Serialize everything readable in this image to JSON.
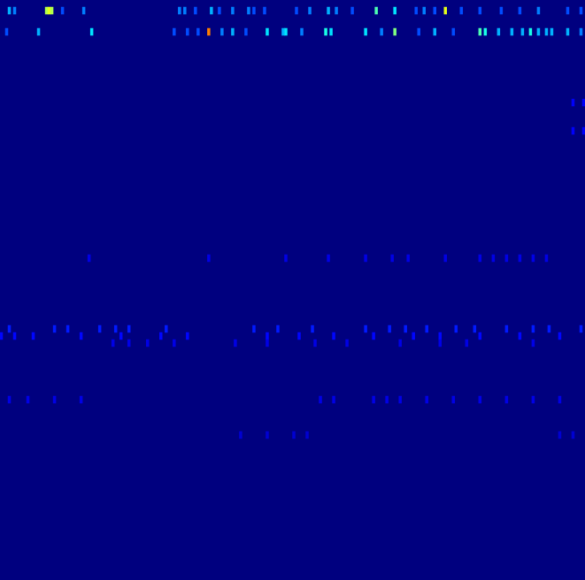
{
  "chart_data": {
    "type": "heatmap",
    "tick_labels": false,
    "grid": false,
    "xlim": [
      0,
      220
    ],
    "ylim": [
      0,
      82
    ],
    "color_range": [
      0,
      1
    ],
    "cells": [
      [
        3,
        1,
        0.3
      ],
      [
        5,
        1,
        0.25
      ],
      [
        17,
        1,
        0.55
      ],
      [
        18,
        1,
        0.6
      ],
      [
        19,
        1,
        0.55
      ],
      [
        23,
        1,
        0.2
      ],
      [
        31,
        1,
        0.25
      ],
      [
        67,
        1,
        0.25
      ],
      [
        69,
        1,
        0.25
      ],
      [
        73,
        1,
        0.2
      ],
      [
        79,
        1,
        0.3
      ],
      [
        82,
        1,
        0.2
      ],
      [
        87,
        1,
        0.25
      ],
      [
        93,
        1,
        0.25
      ],
      [
        95,
        1,
        0.2
      ],
      [
        99,
        1,
        0.2
      ],
      [
        111,
        1,
        0.2
      ],
      [
        116,
        1,
        0.25
      ],
      [
        123,
        1,
        0.3
      ],
      [
        126,
        1,
        0.25
      ],
      [
        132,
        1,
        0.2
      ],
      [
        141,
        1,
        0.45
      ],
      [
        148,
        1,
        0.35
      ],
      [
        156,
        1,
        0.2
      ],
      [
        159,
        1,
        0.25
      ],
      [
        163,
        1,
        0.2
      ],
      [
        167,
        1,
        0.6
      ],
      [
        173,
        1,
        0.2
      ],
      [
        180,
        1,
        0.2
      ],
      [
        188,
        1,
        0.2
      ],
      [
        195,
        1,
        0.2
      ],
      [
        202,
        1,
        0.25
      ],
      [
        213,
        1,
        0.2
      ],
      [
        218,
        1,
        0.2
      ],
      [
        2,
        4,
        0.2
      ],
      [
        14,
        4,
        0.3
      ],
      [
        34,
        4,
        0.35
      ],
      [
        65,
        4,
        0.2
      ],
      [
        70,
        4,
        0.2
      ],
      [
        74,
        4,
        0.2
      ],
      [
        78,
        4,
        0.75
      ],
      [
        83,
        4,
        0.25
      ],
      [
        87,
        4,
        0.3
      ],
      [
        92,
        4,
        0.2
      ],
      [
        100,
        4,
        0.35
      ],
      [
        106,
        4,
        0.3
      ],
      [
        107,
        4,
        0.35
      ],
      [
        113,
        4,
        0.25
      ],
      [
        122,
        4,
        0.4
      ],
      [
        124,
        4,
        0.35
      ],
      [
        137,
        4,
        0.35
      ],
      [
        143,
        4,
        0.25
      ],
      [
        148,
        4,
        0.5
      ],
      [
        157,
        4,
        0.2
      ],
      [
        163,
        4,
        0.3
      ],
      [
        170,
        4,
        0.2
      ],
      [
        180,
        4,
        0.45
      ],
      [
        182,
        4,
        0.4
      ],
      [
        187,
        4,
        0.3
      ],
      [
        192,
        4,
        0.3
      ],
      [
        196,
        4,
        0.3
      ],
      [
        199,
        4,
        0.4
      ],
      [
        202,
        4,
        0.3
      ],
      [
        205,
        4,
        0.3
      ],
      [
        207,
        4,
        0.3
      ],
      [
        213,
        4,
        0.3
      ],
      [
        218,
        4,
        0.25
      ],
      [
        215,
        14,
        0.12
      ],
      [
        219,
        14,
        0.12
      ],
      [
        215,
        18,
        0.12
      ],
      [
        219,
        18,
        0.12
      ],
      [
        33,
        36,
        0.1
      ],
      [
        78,
        36,
        0.1
      ],
      [
        107,
        36,
        0.1
      ],
      [
        123,
        36,
        0.1
      ],
      [
        137,
        36,
        0.1
      ],
      [
        147,
        36,
        0.1
      ],
      [
        153,
        36,
        0.1
      ],
      [
        167,
        36,
        0.1
      ],
      [
        180,
        36,
        0.1
      ],
      [
        185,
        36,
        0.1
      ],
      [
        190,
        36,
        0.1
      ],
      [
        195,
        36,
        0.1
      ],
      [
        200,
        36,
        0.1
      ],
      [
        205,
        36,
        0.1
      ],
      [
        3,
        46,
        0.15
      ],
      [
        20,
        46,
        0.15
      ],
      [
        25,
        46,
        0.15
      ],
      [
        37,
        46,
        0.15
      ],
      [
        43,
        46,
        0.15
      ],
      [
        48,
        46,
        0.15
      ],
      [
        62,
        46,
        0.15
      ],
      [
        95,
        46,
        0.15
      ],
      [
        104,
        46,
        0.15
      ],
      [
        117,
        46,
        0.15
      ],
      [
        137,
        46,
        0.15
      ],
      [
        146,
        46,
        0.15
      ],
      [
        152,
        46,
        0.15
      ],
      [
        160,
        46,
        0.15
      ],
      [
        171,
        46,
        0.15
      ],
      [
        178,
        46,
        0.15
      ],
      [
        190,
        46,
        0.15
      ],
      [
        200,
        46,
        0.15
      ],
      [
        206,
        46,
        0.15
      ],
      [
        218,
        46,
        0.15
      ],
      [
        0,
        47,
        0.13
      ],
      [
        5,
        47,
        0.13
      ],
      [
        12,
        47,
        0.13
      ],
      [
        30,
        47,
        0.13
      ],
      [
        45,
        47,
        0.13
      ],
      [
        60,
        47,
        0.13
      ],
      [
        70,
        47,
        0.13
      ],
      [
        100,
        47,
        0.13
      ],
      [
        112,
        47,
        0.13
      ],
      [
        125,
        47,
        0.13
      ],
      [
        140,
        47,
        0.13
      ],
      [
        155,
        47,
        0.13
      ],
      [
        165,
        47,
        0.13
      ],
      [
        180,
        47,
        0.13
      ],
      [
        195,
        47,
        0.13
      ],
      [
        210,
        47,
        0.13
      ],
      [
        42,
        48,
        0.1
      ],
      [
        48,
        48,
        0.1
      ],
      [
        55,
        48,
        0.1
      ],
      [
        65,
        48,
        0.1
      ],
      [
        88,
        48,
        0.1
      ],
      [
        100,
        48,
        0.1
      ],
      [
        118,
        48,
        0.1
      ],
      [
        130,
        48,
        0.1
      ],
      [
        150,
        48,
        0.1
      ],
      [
        165,
        48,
        0.1
      ],
      [
        175,
        48,
        0.1
      ],
      [
        200,
        48,
        0.1
      ],
      [
        3,
        56,
        0.1
      ],
      [
        10,
        56,
        0.1
      ],
      [
        20,
        56,
        0.1
      ],
      [
        30,
        56,
        0.1
      ],
      [
        120,
        56,
        0.1
      ],
      [
        125,
        56,
        0.1
      ],
      [
        140,
        56,
        0.1
      ],
      [
        145,
        56,
        0.1
      ],
      [
        150,
        56,
        0.1
      ],
      [
        160,
        56,
        0.1
      ],
      [
        170,
        56,
        0.1
      ],
      [
        180,
        56,
        0.1
      ],
      [
        190,
        56,
        0.1
      ],
      [
        200,
        56,
        0.1
      ],
      [
        210,
        56,
        0.1
      ],
      [
        90,
        61,
        0.08
      ],
      [
        100,
        61,
        0.08
      ],
      [
        110,
        61,
        0.08
      ],
      [
        115,
        61,
        0.08
      ],
      [
        210,
        61,
        0.08
      ],
      [
        215,
        61,
        0.08
      ]
    ]
  }
}
